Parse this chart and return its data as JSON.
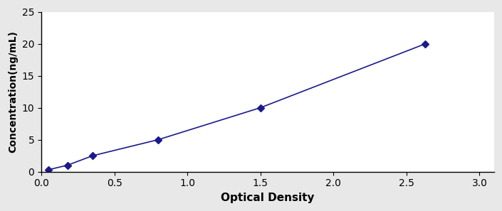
{
  "x": [
    0.048,
    0.178,
    0.353,
    0.8,
    1.5,
    2.63
  ],
  "y": [
    0.3,
    1.0,
    2.5,
    5.0,
    10.0,
    20.0
  ],
  "line_color": "#1a1a8c",
  "marker": "D",
  "marker_size": 5,
  "linewidth": 1.2,
  "xlabel": "Optical Density",
  "ylabel": "Concentration(ng/mL)",
  "xlim": [
    0,
    3.1
  ],
  "ylim": [
    0,
    25
  ],
  "xticks": [
    0,
    0.5,
    1,
    1.5,
    2,
    2.5,
    3
  ],
  "yticks": [
    0,
    5,
    10,
    15,
    20,
    25
  ],
  "xlabel_fontsize": 11,
  "ylabel_fontsize": 10,
  "tick_fontsize": 10,
  "background_color": "#ffffff",
  "figure_background": "#e8e8e8"
}
